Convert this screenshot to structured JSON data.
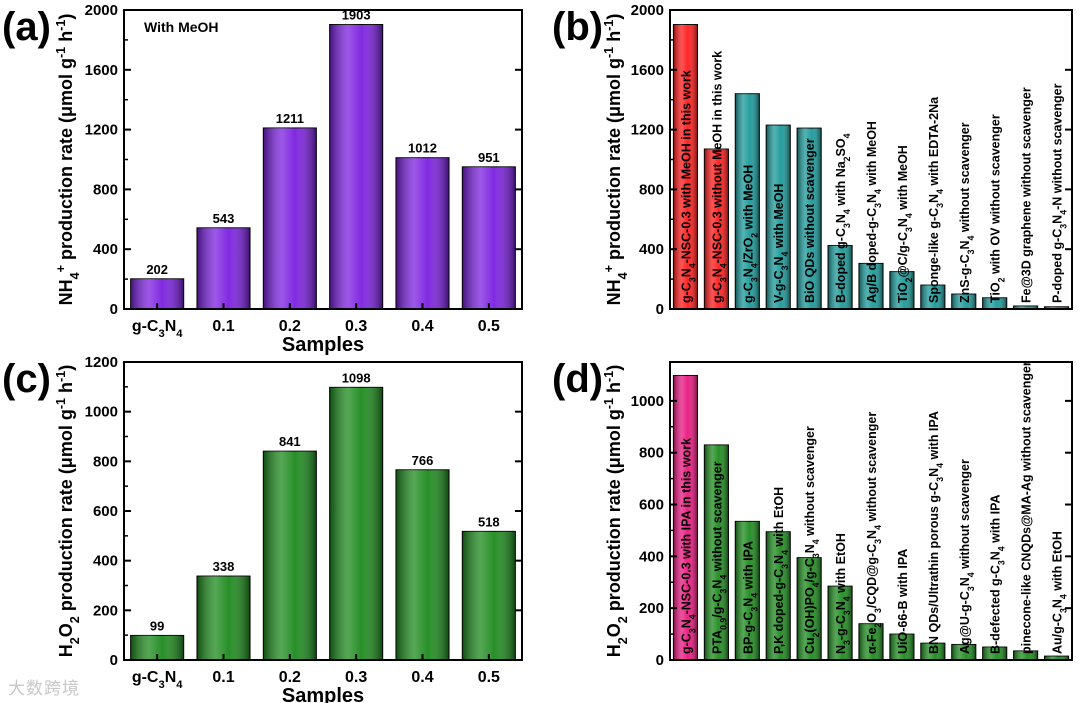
{
  "watermark": "大数跨境",
  "panels": [
    {
      "id": "a",
      "letter": "(a)",
      "type": "bar",
      "orient": "cat",
      "annotation": "With MeOH",
      "xlabel": "Samples",
      "ylabel": "NH4+ production rate (μmol g-1 h-1)",
      "ylim": [
        0,
        2000
      ],
      "yticks": [
        0,
        400,
        800,
        1200,
        1600,
        2000
      ],
      "categories": [
        "g-C3N4",
        "0.1",
        "0.2",
        "0.3",
        "0.4",
        "0.5"
      ],
      "values": [
        202,
        543,
        1211,
        1903,
        1012,
        951
      ],
      "value_labels": [
        "202",
        "543",
        "1211",
        "1903",
        "1012",
        "951"
      ],
      "colors": [
        "#7b1fe0"
      ]
    },
    {
      "id": "b",
      "letter": "(b)",
      "type": "bar",
      "orient": "labeled",
      "ylabel": "NH4+ production rate (μmol g-1 h-1)",
      "ylim": [
        0,
        2000
      ],
      "yticks": [
        0,
        400,
        800,
        1200,
        1600,
        2000
      ],
      "bar_labels": [
        "g-C3N4-NSC-0.3 with MeOH in this work",
        "g-C3N4-NSC-0.3 without MeOH in this work",
        "g-C3N4/ZrO2 with MeOH",
        "V-g-C3N4 with MeOH",
        "BiO QDs without scavenger",
        "B-doped g-C3N4 with Na2SO4",
        "Ag/B doped-g-C3N4 with MeOH",
        "TiO2@C/g-C3N4 with MeOH",
        "Sponge-like g-C3N4 with EDTA-2Na",
        "ZnS-g-C3N4 without scavenger",
        "TiO2 with OV without scavenger",
        "Fe@3D graphene without scavenger",
        "P-doped g-C3N4-N without scavenger"
      ],
      "values": [
        1903,
        1070,
        1440,
        1230,
        1210,
        425,
        305,
        250,
        160,
        100,
        75,
        20,
        15
      ],
      "colors": [
        "#ff1a1a",
        "#ff1a1a",
        "#1a9999",
        "#1a9999",
        "#1a9999",
        "#1a9999",
        "#1a9999",
        "#1a9999",
        "#1a9999",
        "#1a9999",
        "#1a9999",
        "#1a9999",
        "#1a9999"
      ]
    },
    {
      "id": "c",
      "letter": "(c)",
      "type": "bar",
      "orient": "cat",
      "xlabel": "Samples",
      "ylabel": "H2O2 production rate (μmol g-1 h-1)",
      "ylim": [
        0,
        1200
      ],
      "yticks": [
        0,
        200,
        400,
        600,
        800,
        1000,
        1200
      ],
      "categories": [
        "g-C3N4",
        "0.1",
        "0.2",
        "0.3",
        "0.4",
        "0.5"
      ],
      "values": [
        99,
        338,
        841,
        1098,
        766,
        518
      ],
      "value_labels": [
        "99",
        "338",
        "841",
        "1098",
        "766",
        "518"
      ],
      "colors": [
        "#1c8a1c"
      ]
    },
    {
      "id": "d",
      "letter": "(d)",
      "type": "bar",
      "orient": "labeled",
      "ylabel": "H2O2 production rate (μmol g-1 h-1)",
      "ylim": [
        0,
        1150
      ],
      "yticks": [
        0,
        200,
        400,
        600,
        800,
        1000
      ],
      "bar_labels": [
        "g-C3N4-NSC-0.3 with IPA in this work",
        "PTA0.9/g-C3N4 without scavenger",
        "BP-g-C3N4 with IPA",
        "P,K doped-g-C3N4 with EtOH",
        "Cu2(OH)PO4/g-C3N4 without scavenger",
        "N3-g-C3N4 with EtOH",
        "α-Fe2O3/CQD@g-C3N4 without scavenger",
        "UiO-66-B with IPA",
        "BN QDs/Ultrathin porous g-C3N4 with IPA",
        "Ag@U-g-C3N4 without scavenger",
        "B-defected g-C3N4 with IPA",
        "pinecone-like CNQDs@MA-Ag without scavenger",
        "Au/g-C3N4 with EtOH"
      ],
      "values": [
        1098,
        830,
        535,
        495,
        395,
        285,
        140,
        100,
        65,
        60,
        50,
        35,
        15
      ],
      "colors": [
        "#e8177f",
        "#1c8a1c",
        "#1c8a1c",
        "#1c8a1c",
        "#1c8a1c",
        "#1c8a1c",
        "#1c8a1c",
        "#1c8a1c",
        "#1c8a1c",
        "#1c8a1c",
        "#1c8a1c",
        "#1c8a1c",
        "#1c8a1c"
      ]
    }
  ]
}
